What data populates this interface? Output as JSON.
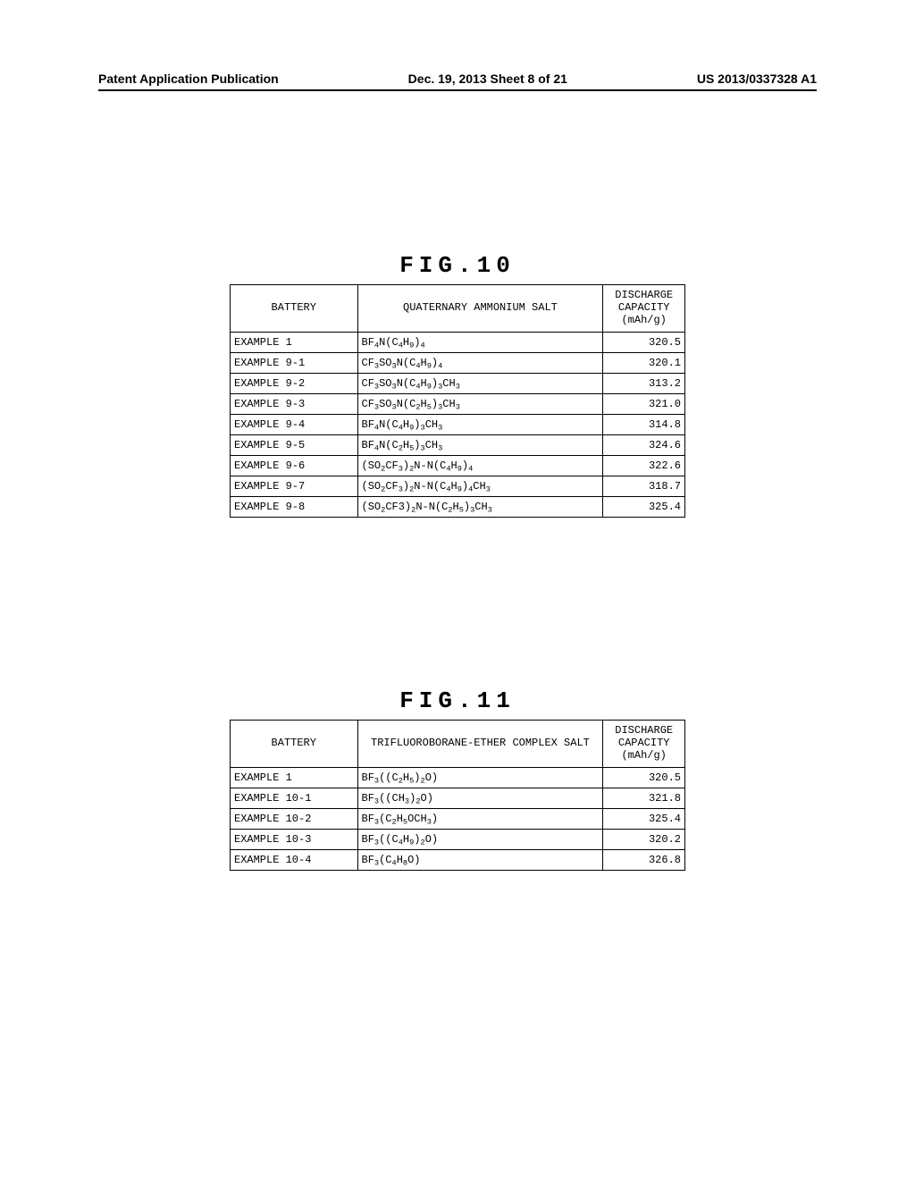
{
  "header": {
    "left": "Patent Application Publication",
    "center": "Dec. 19, 2013   Sheet 8 of 21",
    "right": "US 2013/0337328 A1"
  },
  "fig10": {
    "title": "FIG.10",
    "columns": {
      "battery": "BATTERY",
      "salt": "QUATERNARY AMMONIUM SALT",
      "capacity_l1": "DISCHARGE",
      "capacity_l2": "CAPACITY",
      "capacity_l3": "(mAh/g)"
    },
    "rows": [
      {
        "battery": "EXAMPLE 1",
        "salt_html": "BF<sub>4</sub>N(C<sub>4</sub>H<sub>9</sub>)<sub>4</sub>",
        "cap": "320.5"
      },
      {
        "battery": "EXAMPLE 9-1",
        "salt_html": "CF<sub>3</sub>SO<sub>3</sub>N(C<sub>4</sub>H<sub>9</sub>)<sub>4</sub>",
        "cap": "320.1"
      },
      {
        "battery": "EXAMPLE 9-2",
        "salt_html": "CF<sub>3</sub>SO<sub>3</sub>N(C<sub>4</sub>H<sub>9</sub>)<sub>3</sub>CH<sub>3</sub>",
        "cap": "313.2"
      },
      {
        "battery": "EXAMPLE 9-3",
        "salt_html": "CF<sub>3</sub>SO<sub>3</sub>N(C<sub>2</sub>H<sub>5</sub>)<sub>3</sub>CH<sub>3</sub>",
        "cap": "321.0"
      },
      {
        "battery": "EXAMPLE 9-4",
        "salt_html": "BF<sub>4</sub>N(C<sub>4</sub>H<sub>9</sub>)<sub>3</sub>CH<sub>3</sub>",
        "cap": "314.8"
      },
      {
        "battery": "EXAMPLE 9-5",
        "salt_html": "BF<sub>4</sub>N(C<sub>2</sub>H<sub>5</sub>)<sub>3</sub>CH<sub>3</sub>",
        "cap": "324.6"
      },
      {
        "battery": "EXAMPLE 9-6",
        "salt_html": "(SO<sub>2</sub>CF<sub>3</sub>)<sub>2</sub>N-N(C<sub>4</sub>H<sub>9</sub>)<sub>4</sub>",
        "cap": "322.6"
      },
      {
        "battery": "EXAMPLE 9-7",
        "salt_html": "(SO<sub>2</sub>CF<sub>3</sub>)<sub>2</sub>N-N(C<sub>4</sub>H<sub>9</sub>)<sub>4</sub>CH<sub>3</sub>",
        "cap": "318.7"
      },
      {
        "battery": "EXAMPLE 9-8",
        "salt_html": "(SO<sub>2</sub>CF3)<sub>2</sub>N-N(C<sub>2</sub>H<sub>5</sub>)<sub>3</sub>CH<sub>3</sub>",
        "cap": "325.4"
      }
    ]
  },
  "fig11": {
    "title": "FIG.11",
    "columns": {
      "battery": "BATTERY",
      "salt": "TRIFLUOROBORANE-ETHER COMPLEX SALT",
      "capacity_l1": "DISCHARGE",
      "capacity_l2": "CAPACITY",
      "capacity_l3": "(mAh/g)"
    },
    "rows": [
      {
        "battery": "EXAMPLE 1",
        "salt_html": "BF<sub>3</sub>((C<sub>2</sub>H<sub>5</sub>)<sub>2</sub>O)",
        "cap": "320.5"
      },
      {
        "battery": "EXAMPLE 10-1",
        "salt_html": "BF<sub>3</sub>((CH<sub>3</sub>)<sub>2</sub>O)",
        "cap": "321.8"
      },
      {
        "battery": "EXAMPLE 10-2",
        "salt_html": "BF<sub>3</sub>(C<sub>2</sub>H<sub>5</sub>OCH<sub>3</sub>)",
        "cap": "325.4"
      },
      {
        "battery": "EXAMPLE 10-3",
        "salt_html": "BF<sub>3</sub>((C<sub>4</sub>H<sub>9</sub>)<sub>2</sub>O)",
        "cap": "320.2"
      },
      {
        "battery": "EXAMPLE 10-4",
        "salt_html": "BF<sub>3</sub>(C<sub>4</sub>H<sub>8</sub>O)",
        "cap": "326.8"
      }
    ]
  }
}
